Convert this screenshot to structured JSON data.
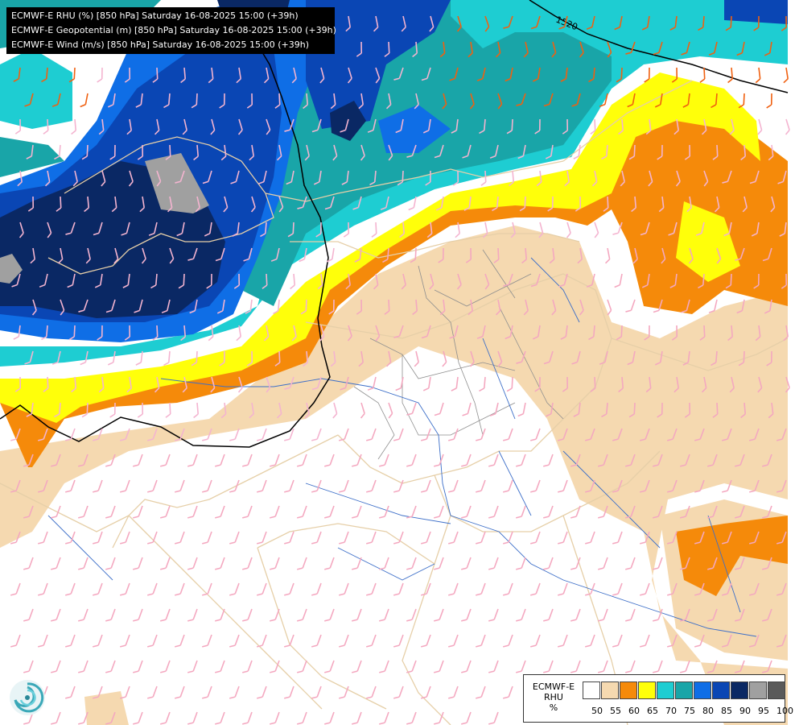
{
  "header": {
    "lines": [
      "ECMWF-E RHU (%) [850 hPa] Saturday 16-08-2025 15:00 (+39h)",
      "ECMWF-E Geopotential (m) [850 hPa] Saturday 16-08-2025 15:00 (+39h)",
      "ECMWF-E Wind (m/s) [850 hPa] Saturday 16-08-2025 15:00 (+39h)"
    ]
  },
  "contour": {
    "label": "1520"
  },
  "legend": {
    "title_line1": "ECMWF-E",
    "title_line2": "RHU",
    "title_line3": "%",
    "ticks": [
      "50",
      "55",
      "60",
      "65",
      "70",
      "75",
      "80",
      "85",
      "90",
      "95",
      "100"
    ],
    "colors": [
      "#ffffff",
      "#f5d9b0",
      "#f58a0a",
      "#ffff0a",
      "#1ecdd2",
      "#19a5a8",
      "#0f6ee6",
      "#0a46b4",
      "#0a2864",
      "#a0a0a0",
      "#5a5a5a"
    ]
  },
  "logo": {
    "icon": "swirl-logo-icon"
  }
}
